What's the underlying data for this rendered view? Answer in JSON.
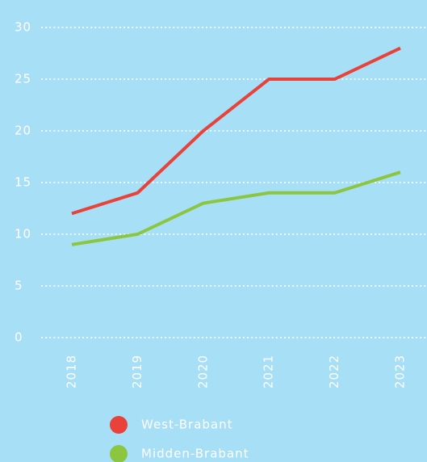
{
  "chart_data": {
    "type": "line",
    "categories": [
      "2018",
      "2019",
      "2020",
      "2021",
      "2022",
      "2023"
    ],
    "series": [
      {
        "name": "West-Brabant",
        "color": "#e8423a",
        "values": [
          12,
          14,
          20,
          25,
          25,
          28
        ]
      },
      {
        "name": "Midden-Brabant",
        "color": "#8cc63f",
        "values": [
          9,
          10,
          13,
          14,
          14,
          16
        ]
      }
    ],
    "ylim": [
      0,
      30
    ],
    "yticks": [
      0,
      5,
      10,
      15,
      20,
      25,
      30
    ],
    "grid": true
  }
}
